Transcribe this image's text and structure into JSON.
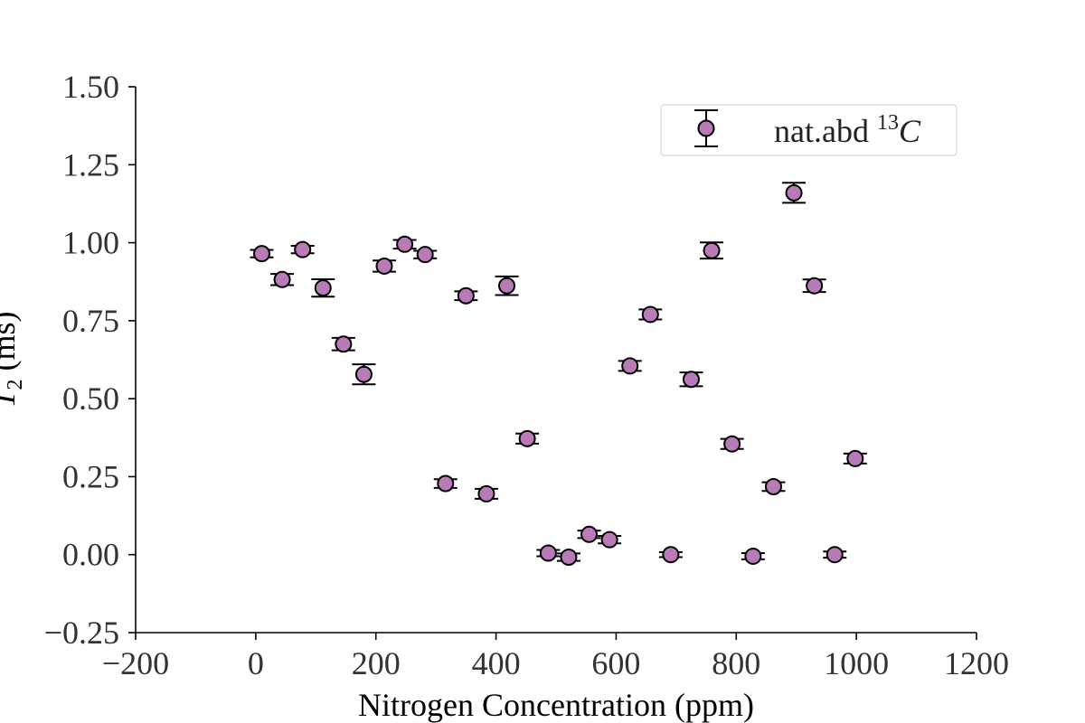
{
  "chart_data": {
    "type": "scatter",
    "xlabel": "Nitrogen Concentration (ppm)",
    "ylabel_main": "T",
    "ylabel_sub": "2",
    "ylabel_units": " (ms)",
    "xlim": [
      -200,
      1200
    ],
    "ylim": [
      -0.25,
      1.5
    ],
    "x_ticks": [
      -200,
      0,
      200,
      400,
      600,
      800,
      1000,
      1200
    ],
    "y_ticks": [
      -0.25,
      0.0,
      0.25,
      0.5,
      0.75,
      1.0,
      1.25,
      1.5
    ],
    "x_tick_labels": [
      "−200",
      "0",
      "200",
      "400",
      "600",
      "800",
      "1000",
      "1200"
    ],
    "y_tick_labels": [
      "−0.25",
      "0.00",
      "0.25",
      "0.50",
      "0.75",
      "1.00",
      "1.25",
      "1.50"
    ],
    "grid": false,
    "legend_position": "top-right",
    "series": [
      {
        "name_main": "nat.abd ",
        "name_sup": "13",
        "name_italic": "C",
        "color": "#b97bb8",
        "edge_color": "#000000",
        "points": [
          {
            "x": 10,
            "y": 0.965,
            "err": 0.012
          },
          {
            "x": 44,
            "y": 0.882,
            "err": 0.018
          },
          {
            "x": 78,
            "y": 0.978,
            "err": 0.012
          },
          {
            "x": 112,
            "y": 0.855,
            "err": 0.028
          },
          {
            "x": 146,
            "y": 0.675,
            "err": 0.02
          },
          {
            "x": 180,
            "y": 0.578,
            "err": 0.032
          },
          {
            "x": 214,
            "y": 0.925,
            "err": 0.018
          },
          {
            "x": 248,
            "y": 0.995,
            "err": 0.014
          },
          {
            "x": 282,
            "y": 0.962,
            "err": 0.012
          },
          {
            "x": 316,
            "y": 0.228,
            "err": 0.014
          },
          {
            "x": 350,
            "y": 0.83,
            "err": 0.014
          },
          {
            "x": 384,
            "y": 0.195,
            "err": 0.016
          },
          {
            "x": 418,
            "y": 0.862,
            "err": 0.03
          },
          {
            "x": 452,
            "y": 0.372,
            "err": 0.016
          },
          {
            "x": 487,
            "y": 0.005,
            "err": 0.01
          },
          {
            "x": 521,
            "y": -0.008,
            "err": 0.012
          },
          {
            "x": 555,
            "y": 0.065,
            "err": 0.012
          },
          {
            "x": 589,
            "y": 0.048,
            "err": 0.012
          },
          {
            "x": 623,
            "y": 0.605,
            "err": 0.016
          },
          {
            "x": 657,
            "y": 0.77,
            "err": 0.016
          },
          {
            "x": 691,
            "y": 0.0,
            "err": 0.008
          },
          {
            "x": 725,
            "y": 0.562,
            "err": 0.022
          },
          {
            "x": 759,
            "y": 0.975,
            "err": 0.026
          },
          {
            "x": 793,
            "y": 0.355,
            "err": 0.016
          },
          {
            "x": 828,
            "y": -0.005,
            "err": 0.01
          },
          {
            "x": 862,
            "y": 0.218,
            "err": 0.014
          },
          {
            "x": 896,
            "y": 1.16,
            "err": 0.032
          },
          {
            "x": 930,
            "y": 0.862,
            "err": 0.02
          },
          {
            "x": 964,
            "y": 0.0,
            "err": 0.01
          },
          {
            "x": 998,
            "y": 0.308,
            "err": 0.016
          }
        ]
      }
    ]
  }
}
